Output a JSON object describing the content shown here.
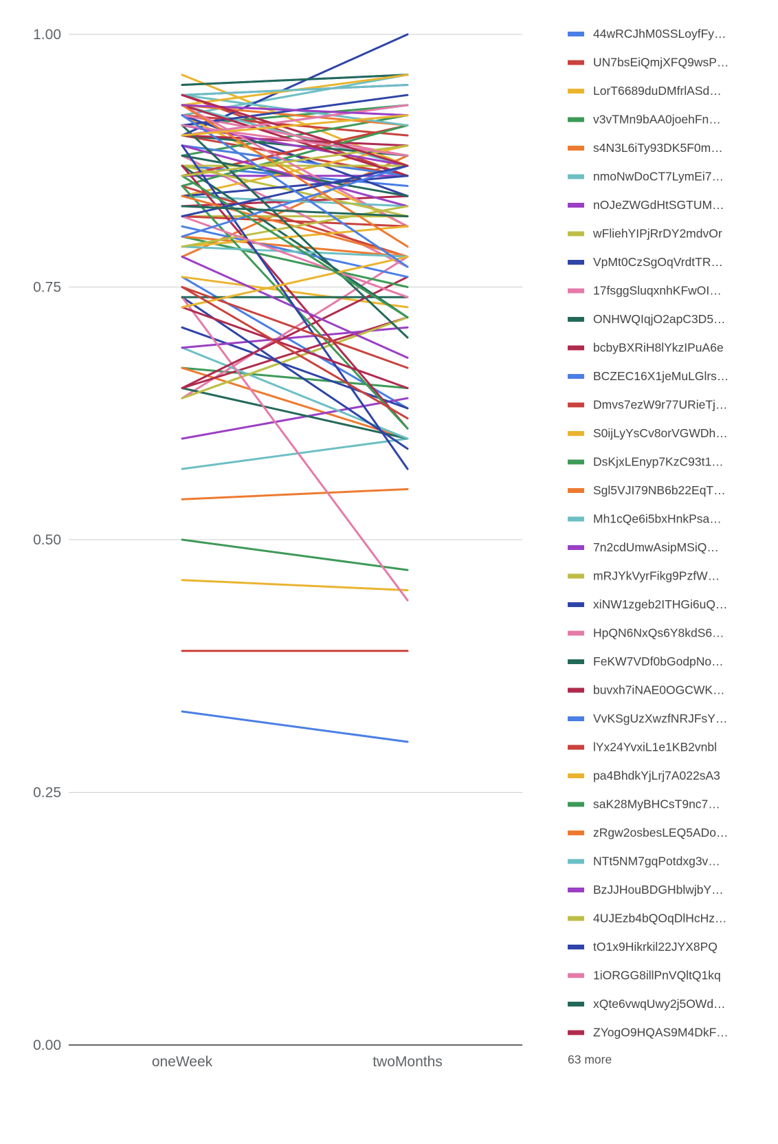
{
  "chart_data": {
    "type": "line",
    "categories": [
      "oneWeek",
      "twoMonths"
    ],
    "ylim": [
      0,
      1
    ],
    "y_ticks": [
      "0.00",
      "0.25",
      "0.50",
      "0.75",
      "1.00"
    ],
    "y_tick_values": [
      0,
      0.25,
      0.5,
      0.75,
      1.0
    ],
    "grid": true,
    "legend_position": "right",
    "legend_more": "63 more",
    "series": [
      {
        "name": "44wRCJhM0SSLoyfFy…",
        "color": "#4a7fe5",
        "values": [
          0.95,
          0.96
        ]
      },
      {
        "name": "UN7bsEiQmjXFQ9wsP…",
        "color": "#c9423c",
        "values": [
          0.94,
          0.86
        ]
      },
      {
        "name": "LorT6689duDMfrlASd…",
        "color": "#eab42f",
        "values": [
          0.96,
          0.87
        ]
      },
      {
        "name": "v3vTMn9bAA0joehFn…",
        "color": "#3d9a57",
        "values": [
          0.91,
          0.93
        ]
      },
      {
        "name": "s4N3L6iTy93DK5F0m…",
        "color": "#ee7a30",
        "values": [
          0.78,
          0.88
        ]
      },
      {
        "name": "nmoNwDoCT7LymEi7…",
        "color": "#6cbfc4",
        "values": [
          0.92,
          0.96
        ]
      },
      {
        "name": "nOJeZWGdHtSGTUM…",
        "color": "#9b3fc4",
        "values": [
          0.94,
          0.95
        ]
      },
      {
        "name": "wFliehYIPjRrDY2mdvOr",
        "color": "#bdbe46",
        "values": [
          0.82,
          0.82
        ]
      },
      {
        "name": "VpMt0CzSgOqVrdtTR…",
        "color": "#2f44a7",
        "values": [
          0.9,
          1.0
        ]
      },
      {
        "name": "17fsggSluqxnhKFwOI…",
        "color": "#e57aa8",
        "values": [
          0.88,
          0.77
        ]
      },
      {
        "name": "ONHWQIqjO2apC3D5…",
        "color": "#23695a",
        "values": [
          0.95,
          0.96
        ]
      },
      {
        "name": "bcbyBXRiH8lYkzIPuA6e",
        "color": "#b02a4e",
        "values": [
          0.83,
          0.84
        ]
      },
      {
        "name": "BCZEC16X1jeMuLGlrs…",
        "color": "#4a7fe5",
        "values": [
          0.76,
          0.63
        ]
      },
      {
        "name": "Dmvs7ezW9r77URieTj…",
        "color": "#c9423c",
        "values": [
          0.9,
          0.86
        ]
      },
      {
        "name": "S0ijLyYsCv8orVGWDh…",
        "color": "#eab42f",
        "values": [
          0.76,
          0.73
        ]
      },
      {
        "name": "DsKjxLEnyp7KzC93t1…",
        "color": "#3d9a57",
        "values": [
          0.67,
          0.65
        ]
      },
      {
        "name": "Sgl5VJI79NB6b22EqT…",
        "color": "#ee7a30",
        "values": [
          0.67,
          0.6
        ]
      },
      {
        "name": "Mh1cQe6i5bxHnkPsa…",
        "color": "#6cbfc4",
        "values": [
          0.57,
          0.6
        ]
      },
      {
        "name": "7n2cdUmwAsipMSiQ…",
        "color": "#9b3fc4",
        "values": [
          0.6,
          0.64
        ]
      },
      {
        "name": "mRJYkVyrFikg9PzfW…",
        "color": "#bdbe46",
        "values": [
          0.64,
          0.72
        ]
      },
      {
        "name": "xiNW1zgeb2ITHGi6uQ…",
        "color": "#2f44a7",
        "values": [
          0.71,
          0.63
        ]
      },
      {
        "name": "HpQN6NxQs6Y8kdS6…",
        "color": "#e57aa8",
        "values": [
          0.64,
          0.78
        ]
      },
      {
        "name": "FeKW7VDf0bGodpNo…",
        "color": "#23695a",
        "values": [
          0.65,
          0.6
        ]
      },
      {
        "name": "buvxh7iNAE0OGCWK…",
        "color": "#b02a4e",
        "values": [
          0.65,
          0.72
        ]
      },
      {
        "name": "VvKSgUzXwzfNRJFsY…",
        "color": "#4a7fe5",
        "values": [
          0.33,
          0.3
        ]
      },
      {
        "name": "lYx24YvxiL1e1KB2vnbl",
        "color": "#c9423c",
        "values": [
          0.39,
          0.39
        ]
      },
      {
        "name": "pa4BhdkYjLrj7A022sA3",
        "color": "#eab42f",
        "values": [
          0.46,
          0.45
        ]
      },
      {
        "name": "saK28MyBHCsT9nc7…",
        "color": "#3d9a57",
        "values": [
          0.5,
          0.47
        ]
      },
      {
        "name": "zRgw2osbesLEQ5ADo…",
        "color": "#ee7a30",
        "values": [
          0.54,
          0.55
        ]
      },
      {
        "name": "NTt5NM7gqPotdxg3v…",
        "color": "#6cbfc4",
        "values": [
          0.69,
          0.6
        ]
      },
      {
        "name": "BzJJHouBDGHblwjbY…",
        "color": "#9b3fc4",
        "values": [
          0.69,
          0.71
        ]
      },
      {
        "name": "4UJEzb4bQOqDlHcHz…",
        "color": "#bdbe46",
        "values": [
          0.64,
          0.72
        ]
      },
      {
        "name": "tO1x9Hikrkil22JYX8PQ",
        "color": "#2f44a7",
        "values": [
          0.74,
          0.59
        ]
      },
      {
        "name": "1iORGG8illPnVQltQ1kq",
        "color": "#e57aa8",
        "values": [
          0.74,
          0.44
        ]
      },
      {
        "name": "xQte6vwqUwy2j5OWd…",
        "color": "#23695a",
        "values": [
          0.74,
          0.74
        ]
      },
      {
        "name": "ZYogO9HQAS9M4DkF…",
        "color": "#b02a4e",
        "values": [
          0.65,
          0.76
        ]
      },
      {
        "values": [
          0.87,
          0.85
        ],
        "color": "#4a7fe5"
      },
      {
        "values": [
          0.92,
          0.9
        ],
        "color": "#c9423c"
      },
      {
        "values": [
          0.92,
          0.81
        ],
        "color": "#eab42f"
      },
      {
        "values": [
          0.88,
          0.92
        ],
        "color": "#3d9a57"
      },
      {
        "values": [
          0.86,
          0.91
        ],
        "color": "#ee7a30"
      },
      {
        "values": [
          0.93,
          0.87
        ],
        "color": "#6cbfc4"
      },
      {
        "values": [
          0.86,
          0.86
        ],
        "color": "#9b3fc4"
      },
      {
        "values": [
          0.89,
          0.86
        ],
        "color": "#bdbe46"
      },
      {
        "values": [
          0.92,
          0.84
        ],
        "color": "#2f44a7"
      },
      {
        "values": [
          0.92,
          0.88
        ],
        "color": "#e57aa8"
      },
      {
        "values": [
          0.9,
          0.88
        ],
        "color": "#23695a"
      },
      {
        "values": [
          0.9,
          0.89
        ],
        "color": "#b02a4e"
      },
      {
        "values": [
          0.89,
          0.86
        ],
        "color": "#4a7fe5"
      },
      {
        "values": [
          0.86,
          0.91
        ],
        "color": "#c9423c"
      },
      {
        "values": [
          0.84,
          0.89
        ],
        "color": "#eab42f"
      },
      {
        "values": [
          0.85,
          0.91
        ],
        "color": "#3d9a57"
      },
      {
        "values": [
          0.93,
          0.91
        ],
        "color": "#ee7a30"
      },
      {
        "values": [
          0.94,
          0.91
        ],
        "color": "#6cbfc4"
      },
      {
        "values": [
          0.91,
          0.87
        ],
        "color": "#9b3fc4"
      },
      {
        "values": [
          0.87,
          0.87
        ],
        "color": "#bdbe46"
      },
      {
        "values": [
          0.91,
          0.94
        ],
        "color": "#2f44a7"
      },
      {
        "values": [
          0.93,
          0.81
        ],
        "color": "#e57aa8"
      },
      {
        "values": [
          0.88,
          0.84
        ],
        "color": "#23695a"
      },
      {
        "values": [
          0.93,
          0.86
        ],
        "color": "#b02a4e"
      },
      {
        "values": [
          0.9,
          0.93
        ],
        "color": "#4a7fe5"
      },
      {
        "values": [
          0.82,
          0.81
        ],
        "color": "#c9423c"
      },
      {
        "values": [
          0.93,
          0.96
        ],
        "color": "#eab42f"
      },
      {
        "values": [
          0.8,
          0.75
        ],
        "color": "#3d9a57"
      },
      {
        "values": [
          0.8,
          0.78
        ],
        "color": "#ee7a30"
      },
      {
        "values": [
          0.84,
          0.83
        ],
        "color": "#6cbfc4"
      },
      {
        "values": [
          0.89,
          0.83
        ],
        "color": "#9b3fc4"
      },
      {
        "values": [
          0.87,
          0.82
        ],
        "color": "#bdbe46"
      },
      {
        "values": [
          0.84,
          0.86
        ],
        "color": "#2f44a7"
      },
      {
        "values": [
          0.9,
          0.93
        ],
        "color": "#e57aa8"
      },
      {
        "values": [
          0.87,
          0.72
        ],
        "color": "#23695a"
      },
      {
        "values": [
          0.87,
          0.61
        ],
        "color": "#b02a4e"
      },
      {
        "values": [
          0.81,
          0.76
        ],
        "color": "#4a7fe5"
      },
      {
        "values": [
          0.85,
          0.78
        ],
        "color": "#c9423c"
      },
      {
        "values": [
          0.79,
          0.81
        ],
        "color": "#eab42f"
      },
      {
        "values": [
          0.85,
          0.61
        ],
        "color": "#3d9a57"
      },
      {
        "values": [
          0.84,
          0.78
        ],
        "color": "#ee7a30"
      },
      {
        "values": [
          0.79,
          0.78
        ],
        "color": "#6cbfc4"
      },
      {
        "values": [
          0.78,
          0.68
        ],
        "color": "#9b3fc4"
      },
      {
        "values": [
          0.79,
          0.83
        ],
        "color": "#bdbe46"
      },
      {
        "values": [
          0.89,
          0.57
        ],
        "color": "#2f44a7"
      },
      {
        "values": [
          0.82,
          0.74
        ],
        "color": "#e57aa8"
      },
      {
        "values": [
          0.91,
          0.7
        ],
        "color": "#23695a"
      },
      {
        "values": [
          0.73,
          0.65
        ],
        "color": "#b02a4e"
      },
      {
        "values": [
          0.8,
          0.87
        ],
        "color": "#4a7fe5"
      },
      {
        "values": [
          0.75,
          0.67
        ],
        "color": "#c9423c"
      },
      {
        "values": [
          0.73,
          0.78
        ],
        "color": "#eab42f"
      },
      {
        "values": [
          0.86,
          0.72
        ],
        "color": "#3d9a57"
      },
      {
        "values": [
          0.93,
          0.79
        ],
        "color": "#ee7a30"
      },
      {
        "values": [
          0.94,
          0.95
        ],
        "color": "#6cbfc4"
      },
      {
        "values": [
          0.93,
          0.92
        ],
        "color": "#9b3fc4"
      },
      {
        "values": [
          0.86,
          0.89
        ],
        "color": "#bdbe46"
      },
      {
        "values": [
          0.82,
          0.87
        ],
        "color": "#2f44a7"
      },
      {
        "values": [
          0.91,
          0.88
        ],
        "color": "#e57aa8"
      },
      {
        "values": [
          0.83,
          0.82
        ],
        "color": "#23695a"
      },
      {
        "values": [
          0.94,
          0.87
        ],
        "color": "#b02a4e"
      },
      {
        "values": [
          0.92,
          0.77
        ],
        "color": "#4a7fe5"
      },
      {
        "values": [
          0.75,
          0.62
        ],
        "color": "#c9423c"
      },
      {
        "values": [
          0.9,
          0.92
        ],
        "color": "#eab42f"
      }
    ]
  }
}
